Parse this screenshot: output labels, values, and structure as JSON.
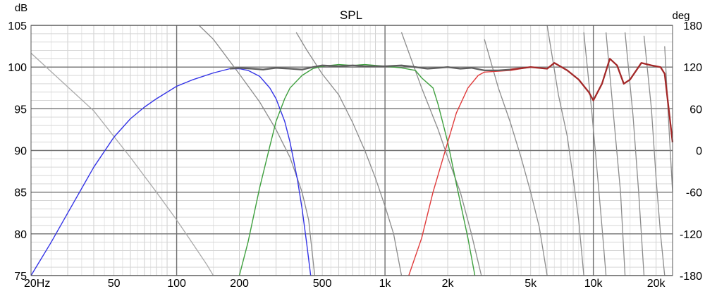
{
  "chart_data": {
    "type": "line",
    "title": "SPL",
    "y_left_unit": "dB",
    "y_right_unit": "deg",
    "x_scale": "log",
    "xlim": [
      20,
      24000
    ],
    "ylim_left": [
      75,
      105
    ],
    "ylim_right": [
      -180,
      180
    ],
    "x_tick_labels": [
      {
        "v": 20,
        "t": "20Hz"
      },
      {
        "v": 50,
        "t": "50"
      },
      {
        "v": 100,
        "t": "100"
      },
      {
        "v": 200,
        "t": "200"
      },
      {
        "v": 500,
        "t": "500"
      },
      {
        "v": 1000,
        "t": "1k"
      },
      {
        "v": 2000,
        "t": "2k"
      },
      {
        "v": 5000,
        "t": "5k"
      },
      {
        "v": 10000,
        "t": "10k"
      },
      {
        "v": 20000,
        "t": "20k"
      }
    ],
    "y_left_ticks": [
      75,
      80,
      85,
      90,
      95,
      100,
      105
    ],
    "y_right_ticks": [
      -180,
      -120,
      -60,
      0,
      60,
      120,
      180
    ],
    "grid": true,
    "series": [
      {
        "role": "woofer",
        "color": "#3434e6",
        "points": [
          [
            20,
            75
          ],
          [
            25,
            79
          ],
          [
            30,
            82.5
          ],
          [
            40,
            88
          ],
          [
            50,
            91.6
          ],
          [
            60,
            93.8
          ],
          [
            70,
            95.2
          ],
          [
            80,
            96.2
          ],
          [
            100,
            97.7
          ],
          [
            120,
            98.5
          ],
          [
            150,
            99.3
          ],
          [
            180,
            99.8
          ],
          [
            200,
            99.8
          ],
          [
            220,
            99.6
          ],
          [
            250,
            98.9
          ],
          [
            280,
            97.5
          ],
          [
            300,
            96.2
          ],
          [
            330,
            93.5
          ],
          [
            350,
            91
          ],
          [
            380,
            86.5
          ],
          [
            400,
            83
          ],
          [
            420,
            79
          ],
          [
            440,
            75
          ]
        ]
      },
      {
        "role": "midrange",
        "color": "#3fa03f",
        "points": [
          [
            200,
            75
          ],
          [
            220,
            79
          ],
          [
            250,
            85.5
          ],
          [
            280,
            90.5
          ],
          [
            300,
            93.5
          ],
          [
            330,
            96.2
          ],
          [
            350,
            97.5
          ],
          [
            400,
            99
          ],
          [
            450,
            99.8
          ],
          [
            500,
            100.1
          ],
          [
            600,
            100.3
          ],
          [
            700,
            100.2
          ],
          [
            800,
            100.3
          ],
          [
            1000,
            100.1
          ],
          [
            1200,
            99.9
          ],
          [
            1400,
            99.6
          ],
          [
            1500,
            98.7
          ],
          [
            1700,
            97.5
          ],
          [
            1800,
            95.5
          ],
          [
            2000,
            91
          ],
          [
            2200,
            86
          ],
          [
            2500,
            79.5
          ],
          [
            2700,
            75
          ]
        ]
      },
      {
        "role": "tweeter",
        "color": "#e03c3c",
        "points": [
          [
            1300,
            75
          ],
          [
            1500,
            79.5
          ],
          [
            1700,
            85
          ],
          [
            2000,
            91
          ],
          [
            2200,
            94.5
          ],
          [
            2500,
            97.5
          ],
          [
            2800,
            99
          ],
          [
            3000,
            99.4
          ],
          [
            3500,
            99.5
          ],
          [
            4000,
            99.6
          ],
          [
            5000,
            100
          ],
          [
            6000,
            99.8
          ],
          [
            6500,
            100.5
          ],
          [
            7500,
            99.6
          ],
          [
            8500,
            98.5
          ],
          [
            9500,
            97
          ],
          [
            10000,
            96
          ],
          [
            11000,
            98
          ],
          [
            12000,
            101
          ],
          [
            13000,
            100.2
          ],
          [
            14000,
            98
          ],
          [
            15000,
            98.5
          ],
          [
            17000,
            100.5
          ],
          [
            19000,
            100.2
          ],
          [
            21000,
            100
          ],
          [
            22000,
            99.2
          ],
          [
            23000,
            95
          ],
          [
            24000,
            91
          ]
        ]
      },
      {
        "role": "sum",
        "color": "#5e5e5e",
        "points": [
          [
            180,
            99.8
          ],
          [
            200,
            99.9
          ],
          [
            230,
            99.8
          ],
          [
            260,
            99.7
          ],
          [
            300,
            99.9
          ],
          [
            350,
            99.8
          ],
          [
            400,
            99.7
          ],
          [
            450,
            100
          ],
          [
            500,
            100.2
          ],
          [
            600,
            100.1
          ],
          [
            700,
            100.2
          ],
          [
            800,
            100.1
          ],
          [
            1000,
            100.1
          ],
          [
            1200,
            100.2
          ],
          [
            1400,
            100
          ],
          [
            1600,
            99.8
          ],
          [
            1800,
            99.9
          ],
          [
            2000,
            100
          ],
          [
            2300,
            99.8
          ],
          [
            2600,
            99.9
          ],
          [
            3000,
            99.6
          ],
          [
            3500,
            99.6
          ],
          [
            4000,
            99.7
          ]
        ]
      },
      {
        "role": "sum-hf",
        "color": "#a32828",
        "points": [
          [
            4000,
            99.7
          ],
          [
            5000,
            100
          ],
          [
            6000,
            99.8
          ],
          [
            6500,
            100.5
          ],
          [
            7500,
            99.6
          ],
          [
            8500,
            98.5
          ],
          [
            9500,
            97
          ],
          [
            10000,
            96
          ],
          [
            11000,
            98
          ],
          [
            12000,
            101
          ],
          [
            13000,
            100.2
          ],
          [
            14000,
            98
          ],
          [
            15000,
            98.5
          ],
          [
            17000,
            100.5
          ],
          [
            19000,
            100.2
          ],
          [
            21000,
            100
          ],
          [
            22000,
            99.2
          ],
          [
            23000,
            95
          ],
          [
            24000,
            91
          ]
        ]
      }
    ],
    "phase_series": [
      {
        "role": "phase-low",
        "color": "#aaaaaa",
        "points": [
          [
            20,
            140
          ],
          [
            40,
            57
          ],
          [
            60,
            -10
          ],
          [
            80,
            -60
          ],
          [
            100,
            -100
          ],
          [
            120,
            -135
          ],
          [
            140,
            -165
          ],
          [
            150,
            -180
          ]
        ]
      },
      {
        "role": "phase-woofer",
        "color": "#8c8c8c",
        "segments": [
          [
            [
              128,
              180
            ],
            [
              150,
              160
            ],
            [
              200,
              110
            ],
            [
              250,
              70
            ],
            [
              300,
              30
            ],
            [
              350,
              -10
            ],
            [
              400,
              -60
            ],
            [
              430,
              -100
            ],
            [
              460,
              -180
            ]
          ]
        ]
      },
      {
        "role": "phase-mid",
        "color": "#8c8c8c",
        "segments": [
          [
            [
              375,
              170
            ],
            [
              420,
              145
            ],
            [
              500,
              110
            ],
            [
              600,
              80
            ],
            [
              700,
              40
            ],
            [
              800,
              0
            ],
            [
              900,
              -40
            ],
            [
              1000,
              -80
            ],
            [
              1100,
              -120
            ],
            [
              1200,
              -180
            ]
          ],
          [
            [
              1200,
              170
            ],
            [
              1500,
              90
            ],
            [
              1800,
              30
            ],
            [
              2000,
              -10
            ],
            [
              2300,
              -60
            ],
            [
              2600,
              -120
            ],
            [
              2900,
              -180
            ]
          ]
        ]
      },
      {
        "role": "phase-hf",
        "color": "#8c8c8c",
        "segments": [
          [
            [
              3000,
              160
            ],
            [
              3500,
              90
            ],
            [
              4000,
              40
            ],
            [
              4500,
              -10
            ],
            [
              5000,
              -60
            ],
            [
              5500,
              -110
            ],
            [
              6000,
              -180
            ]
          ],
          [
            [
              6000,
              180
            ],
            [
              6800,
              80
            ],
            [
              7500,
              20
            ],
            [
              8000,
              -40
            ],
            [
              8500,
              -100
            ],
            [
              9000,
              -180
            ]
          ],
          [
            [
              9000,
              170
            ],
            [
              9800,
              60
            ],
            [
              10500,
              -40
            ],
            [
              11000,
              -110
            ],
            [
              11500,
              -180
            ]
          ],
          [
            [
              11500,
              170
            ],
            [
              12500,
              50
            ],
            [
              13500,
              -60
            ],
            [
              14200,
              -180
            ]
          ],
          [
            [
              14200,
              170
            ],
            [
              15500,
              50
            ],
            [
              16500,
              -60
            ],
            [
              17500,
              -180
            ]
          ],
          [
            [
              17500,
              165
            ],
            [
              19000,
              60
            ],
            [
              20000,
              -40
            ],
            [
              21000,
              -120
            ],
            [
              22000,
              -180
            ]
          ],
          [
            [
              22000,
              150
            ],
            [
              23000,
              40
            ],
            [
              24000,
              -60
            ]
          ]
        ]
      }
    ]
  }
}
